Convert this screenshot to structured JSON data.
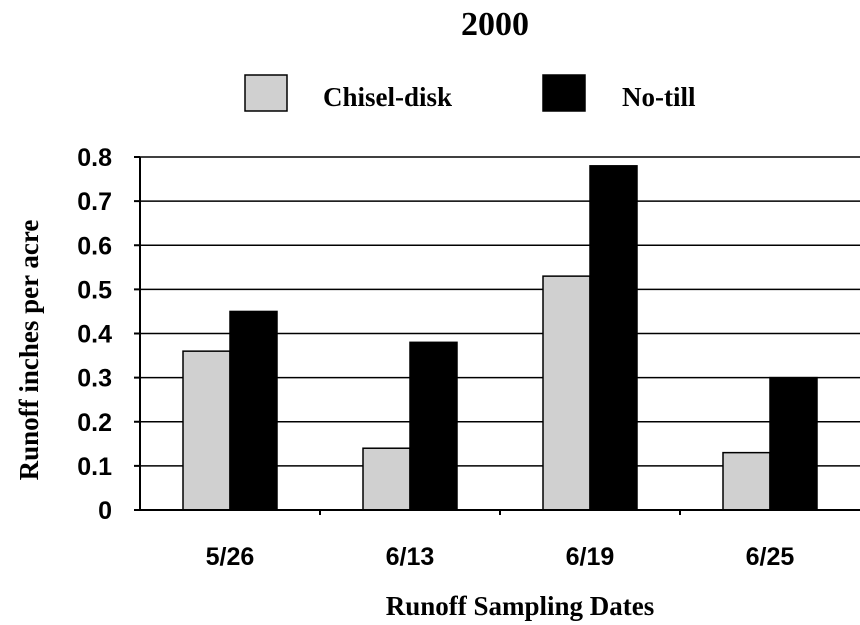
{
  "chart_data": {
    "type": "bar",
    "title": "2000",
    "xlabel": "Runoff Sampling Dates",
    "ylabel": "Runoff inches per acre",
    "categories": [
      "5/26",
      "6/13",
      "6/19",
      "6/25"
    ],
    "series": [
      {
        "name": "Chisel-disk",
        "values": [
          0.36,
          0.14,
          0.53,
          0.13
        ],
        "color": "#d0d0d0"
      },
      {
        "name": "No-till",
        "values": [
          0.45,
          0.38,
          0.78,
          0.3
        ],
        "color": "#000000"
      }
    ],
    "ylim": [
      0,
      0.8
    ],
    "yticks": [
      "0",
      "0.1",
      "0.2",
      "0.3",
      "0.4",
      "0.5",
      "0.6",
      "0.7",
      "0.8"
    ],
    "grid": true,
    "legend_position": "top"
  }
}
